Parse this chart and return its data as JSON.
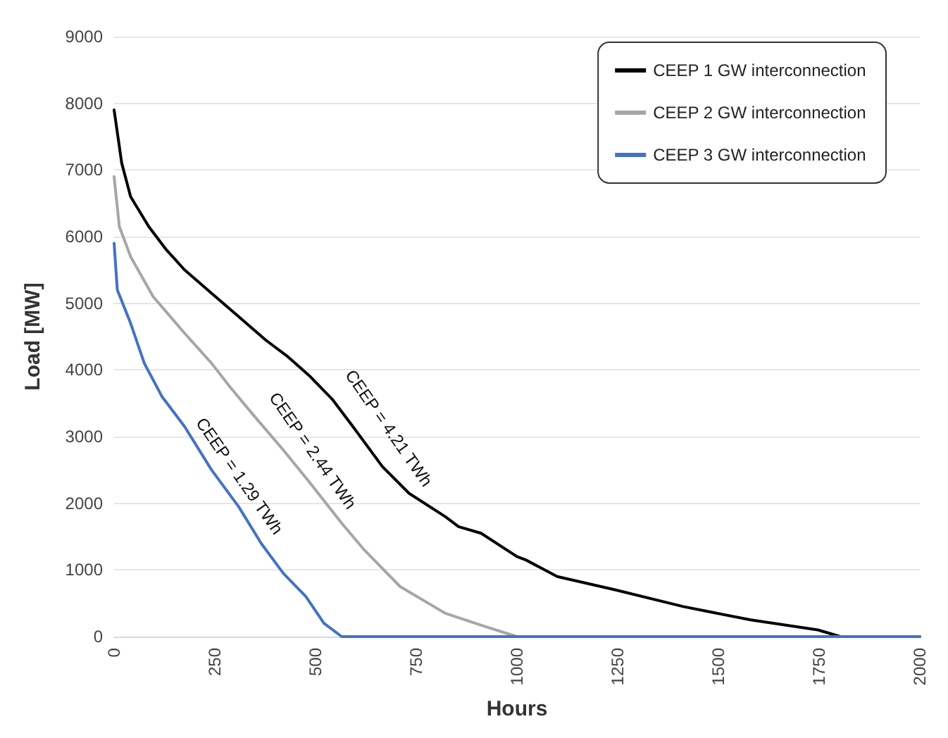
{
  "chart_data": {
    "type": "line",
    "xlabel": "Hours",
    "ylabel": "Load [MW]",
    "xlim": [
      0,
      2000
    ],
    "xticks": [
      0,
      250,
      500,
      750,
      1000,
      1250,
      1500,
      1750,
      2000
    ],
    "ylim": [
      0,
      9000
    ],
    "yticks": [
      0,
      1000,
      2000,
      3000,
      4000,
      5000,
      6000,
      7000,
      8000,
      9000
    ],
    "grid": "y",
    "legend": "top right",
    "marker": "none",
    "line_style": "solid",
    "series": [
      {
        "name": "CEEP 1 GW interconnection",
        "color": "#000000",
        "x": [
          0,
          19,
          41,
          86,
          130,
          175,
          242,
          309,
          376,
          431,
          487,
          543,
          599,
          666,
          732,
          822,
          855,
          911,
          1000,
          1022,
          1100,
          1245,
          1413,
          1580,
          1747,
          1803,
          2000
        ],
        "values": [
          7900,
          7100,
          6600,
          6150,
          5800,
          5500,
          5150,
          4800,
          4450,
          4200,
          3900,
          3550,
          3100,
          2550,
          2150,
          1800,
          1650,
          1550,
          1200,
          1150,
          900,
          700,
          450,
          250,
          100,
          0,
          0
        ]
      },
      {
        "name": "CEEP 2 GW interconnection",
        "color": "#a6a6a6",
        "x": [
          0,
          13,
          41,
          97,
          175,
          242,
          287,
          342,
          420,
          487,
          565,
          621,
          710,
          822,
          922,
          1000,
          2000
        ],
        "values": [
          6900,
          6150,
          5700,
          5100,
          4550,
          4100,
          3750,
          3350,
          2800,
          2300,
          1700,
          1300,
          750,
          350,
          150,
          0,
          0
        ]
      },
      {
        "name": "CEEP 3 GW interconnection",
        "color": "#4472c4",
        "x": [
          0,
          8,
          41,
          75,
          119,
          175,
          242,
          309,
          365,
          420,
          476,
          521,
          565,
          2000
        ],
        "values": [
          5900,
          5200,
          4700,
          4100,
          3600,
          3150,
          2500,
          1950,
          1400,
          950,
          600,
          200,
          0,
          0
        ]
      }
    ],
    "annotations": [
      "CEEP = 4.21 TWh",
      "CEEP = 2.44 TWh",
      "CEEP = 1.29 TWh"
    ]
  }
}
